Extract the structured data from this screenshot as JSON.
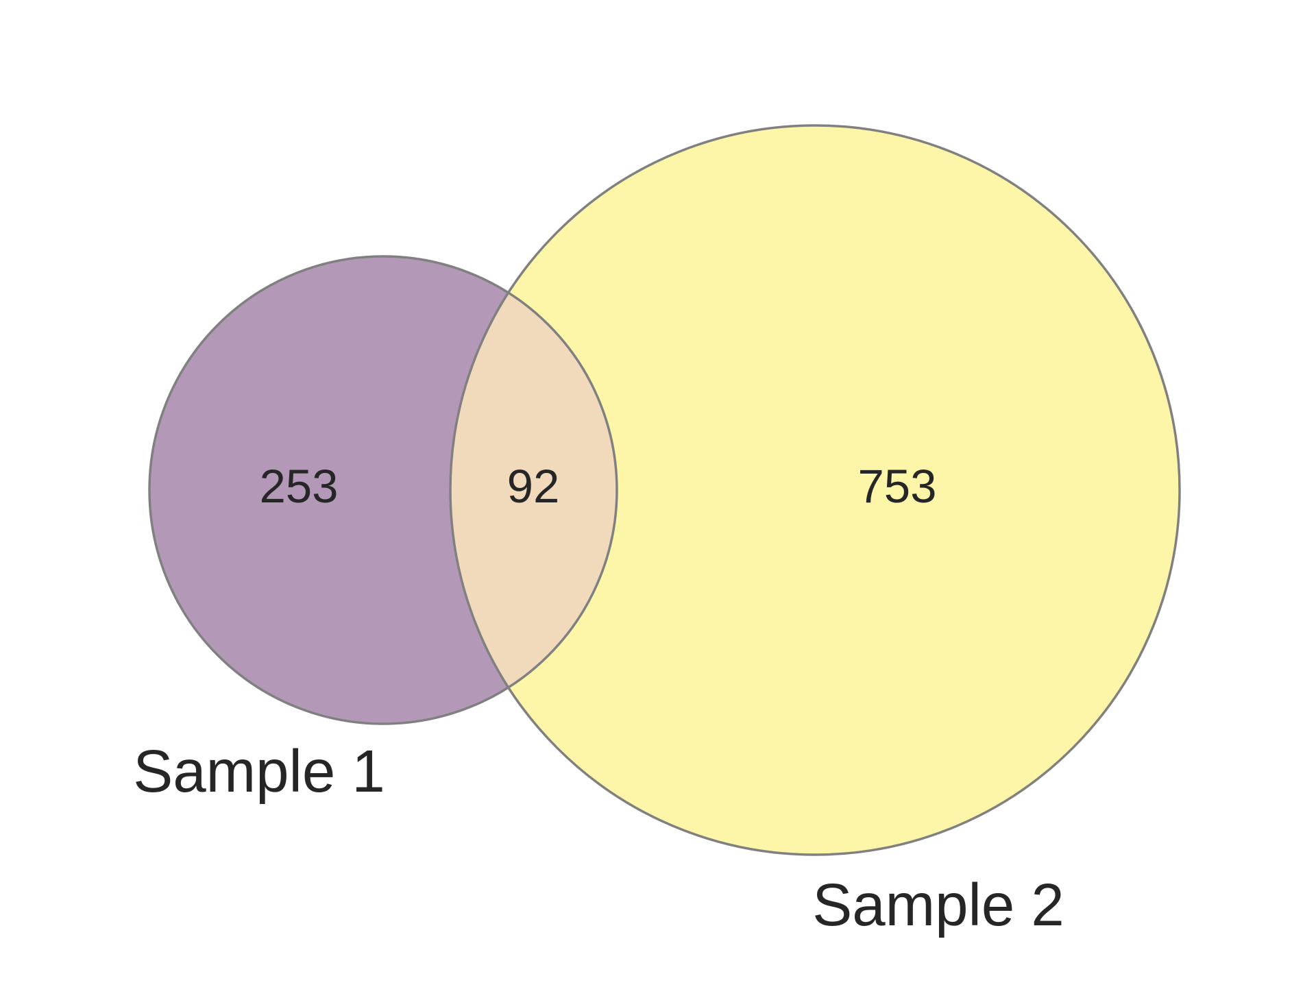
{
  "chart_data": {
    "type": "venn",
    "sets": [
      {
        "name": "Sample 1",
        "color": "#b398b8"
      },
      {
        "name": "Sample 2",
        "color": "#fdf5a8"
      }
    ],
    "regions": {
      "sample1_only": 253,
      "intersection": 92,
      "sample2_only": 753
    },
    "intersection_color": "#f1d9bc",
    "outline_color": "#808080"
  }
}
